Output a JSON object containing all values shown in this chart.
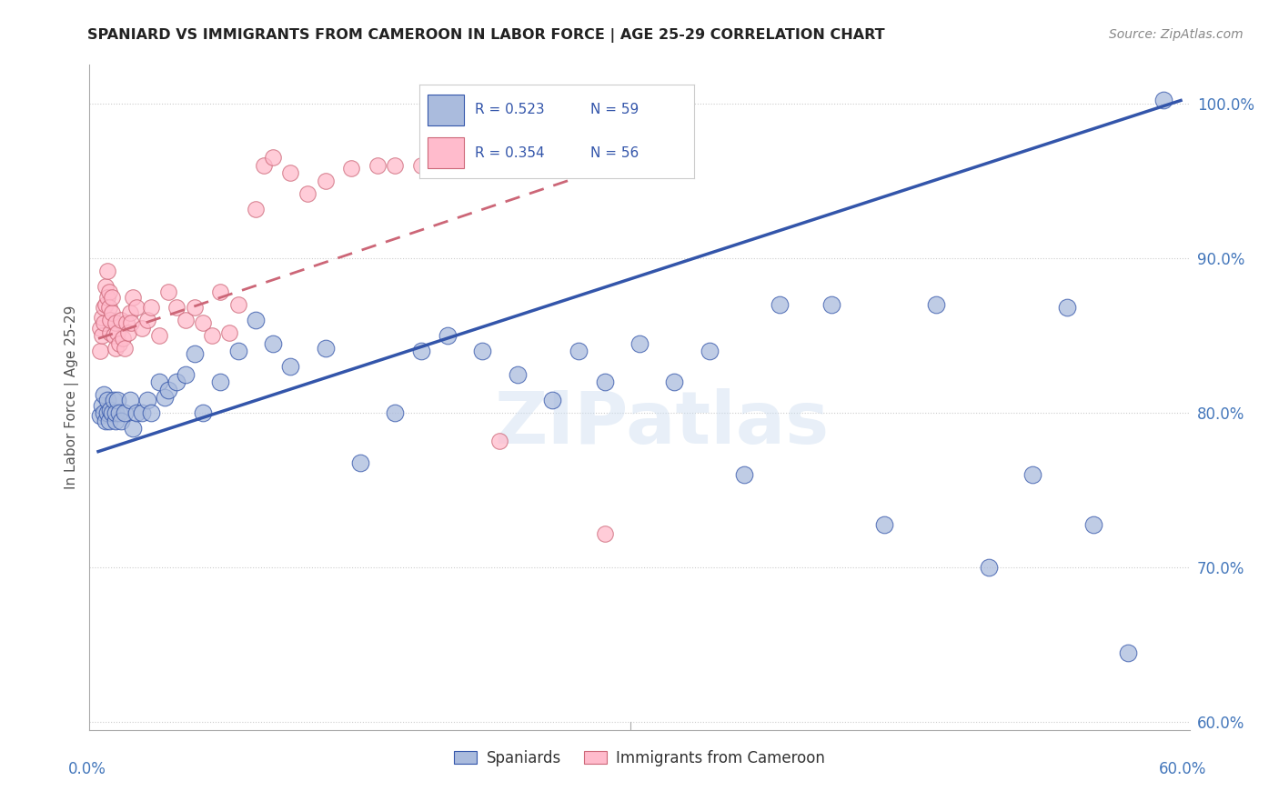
{
  "title": "SPANIARD VS IMMIGRANTS FROM CAMEROON IN LABOR FORCE | AGE 25-29 CORRELATION CHART",
  "source": "Source: ZipAtlas.com",
  "ylabel": "In Labor Force | Age 25-29",
  "yticks": [
    0.6,
    0.7,
    0.8,
    0.9,
    1.0
  ],
  "ytick_labels": [
    "60.0%",
    "70.0%",
    "80.0%",
    "90.0%",
    "100.0%"
  ],
  "xlim": [
    -0.005,
    0.625
  ],
  "ylim": [
    0.595,
    1.025
  ],
  "blue_R": 0.523,
  "blue_N": 59,
  "pink_R": 0.354,
  "pink_N": 56,
  "blue_color": "#AABBDD",
  "pink_color": "#FFBBCC",
  "line_blue": "#3355AA",
  "line_pink": "#CC6677",
  "legend_blue_label": "Spaniards",
  "legend_pink_label": "Immigrants from Cameroon",
  "blue_x": [
    0.001,
    0.002,
    0.003,
    0.003,
    0.004,
    0.005,
    0.005,
    0.006,
    0.007,
    0.008,
    0.009,
    0.01,
    0.01,
    0.011,
    0.012,
    0.013,
    0.015,
    0.018,
    0.02,
    0.022,
    0.025,
    0.028,
    0.03,
    0.035,
    0.038,
    0.04,
    0.045,
    0.05,
    0.055,
    0.06,
    0.07,
    0.08,
    0.09,
    0.1,
    0.11,
    0.13,
    0.15,
    0.17,
    0.185,
    0.2,
    0.22,
    0.24,
    0.26,
    0.275,
    0.29,
    0.31,
    0.33,
    0.35,
    0.37,
    0.39,
    0.42,
    0.45,
    0.48,
    0.51,
    0.535,
    0.555,
    0.57,
    0.59,
    0.61
  ],
  "blue_y": [
    0.798,
    0.805,
    0.8,
    0.812,
    0.795,
    0.8,
    0.808,
    0.795,
    0.802,
    0.8,
    0.808,
    0.795,
    0.8,
    0.808,
    0.8,
    0.795,
    0.8,
    0.808,
    0.79,
    0.8,
    0.8,
    0.808,
    0.8,
    0.82,
    0.81,
    0.815,
    0.82,
    0.825,
    0.838,
    0.8,
    0.82,
    0.84,
    0.86,
    0.845,
    0.83,
    0.842,
    0.768,
    0.8,
    0.84,
    0.85,
    0.84,
    0.825,
    0.808,
    0.84,
    0.82,
    0.845,
    0.82,
    0.84,
    0.76,
    0.87,
    0.87,
    0.728,
    0.87,
    0.7,
    0.76,
    0.868,
    0.728,
    0.645,
    1.002
  ],
  "pink_x": [
    0.001,
    0.001,
    0.002,
    0.002,
    0.003,
    0.003,
    0.004,
    0.004,
    0.005,
    0.005,
    0.006,
    0.006,
    0.007,
    0.007,
    0.008,
    0.008,
    0.009,
    0.01,
    0.01,
    0.011,
    0.012,
    0.013,
    0.014,
    0.015,
    0.016,
    0.017,
    0.018,
    0.019,
    0.02,
    0.022,
    0.025,
    0.028,
    0.03,
    0.035,
    0.04,
    0.045,
    0.05,
    0.055,
    0.06,
    0.065,
    0.07,
    0.075,
    0.08,
    0.09,
    0.095,
    0.1,
    0.11,
    0.12,
    0.13,
    0.145,
    0.16,
    0.17,
    0.185,
    0.205,
    0.23,
    0.29
  ],
  "pink_y": [
    0.84,
    0.855,
    0.85,
    0.862,
    0.858,
    0.868,
    0.87,
    0.882,
    0.875,
    0.892,
    0.878,
    0.868,
    0.852,
    0.86,
    0.865,
    0.875,
    0.85,
    0.842,
    0.858,
    0.852,
    0.845,
    0.86,
    0.848,
    0.842,
    0.858,
    0.852,
    0.865,
    0.858,
    0.875,
    0.868,
    0.855,
    0.86,
    0.868,
    0.85,
    0.878,
    0.868,
    0.86,
    0.868,
    0.858,
    0.85,
    0.878,
    0.852,
    0.87,
    0.932,
    0.96,
    0.965,
    0.955,
    0.942,
    0.95,
    0.958,
    0.96,
    0.96,
    0.96,
    0.96,
    0.782,
    0.722
  ],
  "blue_line_x0": 0.0,
  "blue_line_x1": 0.62,
  "blue_line_y0": 0.775,
  "blue_line_y1": 1.002,
  "pink_line_x0": 0.0,
  "pink_line_x1": 0.295,
  "pink_line_y0": 0.848,
  "pink_line_y1": 0.96,
  "watermark": "ZIPatlas",
  "background_color": "#FFFFFF",
  "grid_color": "#CCCCCC"
}
